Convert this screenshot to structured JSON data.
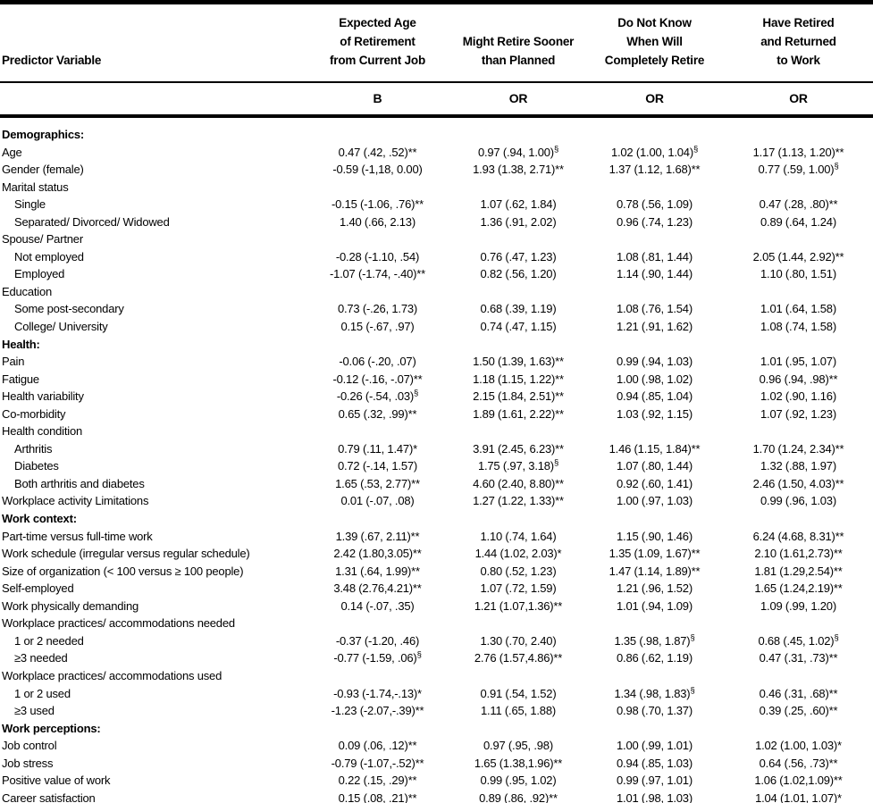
{
  "page": {
    "background": "#ffffff",
    "text_color": "#000000",
    "rule_color": "#000000"
  },
  "table": {
    "col1_header": "Predictor Variable",
    "columns": [
      {
        "title_lines": [
          "Expected Age",
          "of Retirement",
          "from Current Job"
        ],
        "stat": "B"
      },
      {
        "title_lines": [
          "Might Retire Sooner",
          "than Planned"
        ],
        "stat": "OR"
      },
      {
        "title_lines": [
          "Do Not Know",
          "When Will",
          "Completely Retire"
        ],
        "stat": "OR"
      },
      {
        "title_lines": [
          "Have Retired",
          "and Returned",
          "to Work"
        ],
        "stat": "OR"
      }
    ],
    "rows": [
      {
        "label": "Demographics:",
        "style": "section",
        "cells": [
          "",
          "",
          "",
          ""
        ]
      },
      {
        "label": "Age",
        "style": "plain",
        "cells": [
          "0.47 (.42, .52)**",
          "0.97 (.94, 1.00)§",
          "1.02 (1.00, 1.04)§",
          "1.17 (1.13, 1.20)**"
        ]
      },
      {
        "label": "Gender (female)",
        "style": "plain",
        "cells": [
          "-0.59 (-1,18, 0.00)",
          "1.93 (1.38, 2.71)**",
          "1.37 (1.12, 1.68)**",
          "0.77 (.59, 1.00)§"
        ]
      },
      {
        "label": "Marital status",
        "style": "plain",
        "cells": [
          "",
          "",
          "",
          ""
        ]
      },
      {
        "label": "Single",
        "style": "indent",
        "cells": [
          "-0.15 (-1.06, .76)**",
          "1.07 (.62, 1.84)",
          "0.78 (.56, 1.09)",
          "0.47 (.28, .80)**"
        ]
      },
      {
        "label": "Separated/ Divorced/ Widowed",
        "style": "indent",
        "cells": [
          "1.40 (.66, 2.13)",
          "1.36 (.91, 2.02)",
          "0.96 (.74, 1.23)",
          "0.89 (.64, 1.24)"
        ]
      },
      {
        "label": "Spouse/ Partner",
        "style": "plain",
        "cells": [
          "",
          "",
          "",
          ""
        ]
      },
      {
        "label": "Not employed",
        "style": "indent",
        "cells": [
          "-0.28 (-1.10, .54)",
          "0.76 (.47, 1.23)",
          "1.08 (.81, 1.44)",
          "2.05 (1.44, 2.92)**"
        ]
      },
      {
        "label": "Employed",
        "style": "indent",
        "cells": [
          "-1.07 (-1.74, -.40)**",
          "0.82 (.56, 1.20)",
          "1.14 (.90, 1.44)",
          "1.10 (.80, 1.51)"
        ]
      },
      {
        "label": "Education",
        "style": "plain",
        "cells": [
          "",
          "",
          "",
          ""
        ]
      },
      {
        "label": "Some post-secondary",
        "style": "indent",
        "cells": [
          "0.73 (-.26, 1.73)",
          "0.68 (.39, 1.19)",
          "1.08 (.76, 1.54)",
          "1.01 (.64, 1.58)"
        ]
      },
      {
        "label": "College/ University",
        "style": "indent",
        "cells": [
          "0.15 (-.67, .97)",
          "0.74 (.47, 1.15)",
          "1.21 (.91, 1.62)",
          "1.08 (.74, 1.58)"
        ]
      },
      {
        "label": "Health:",
        "style": "section",
        "cells": [
          "",
          "",
          "",
          ""
        ]
      },
      {
        "label": "Pain",
        "style": "plain",
        "cells": [
          "-0.06 (-.20, .07)",
          "1.50 (1.39, 1.63)**",
          "0.99 (.94, 1.03)",
          "1.01 (.95, 1.07)"
        ]
      },
      {
        "label": "Fatigue",
        "style": "plain",
        "cells": [
          "-0.12 (-.16, -.07)**",
          "1.18 (1.15, 1.22)**",
          "1.00 (.98, 1.02)",
          "0.96 (.94, .98)**"
        ]
      },
      {
        "label": "Health variability",
        "style": "plain",
        "cells": [
          "-0.26 (-.54, .03)§",
          "2.15 (1.84, 2.51)**",
          "0.94 (.85, 1.04)",
          "1.02 (.90, 1.16)"
        ]
      },
      {
        "label": "Co-morbidity",
        "style": "plain",
        "cells": [
          "0.65 (.32, .99)**",
          "1.89 (1.61, 2.22)**",
          "1.03 (.92, 1.15)",
          "1.07 (.92, 1.23)"
        ]
      },
      {
        "label": "Health condition",
        "style": "plain",
        "cells": [
          "",
          "",
          "",
          ""
        ]
      },
      {
        "label": "Arthritis",
        "style": "indent",
        "cells": [
          "0.79 (.11, 1.47)*",
          "3.91 (2.45, 6.23)**",
          "1.46 (1.15, 1.84)**",
          "1.70 (1.24, 2.34)**"
        ]
      },
      {
        "label": "Diabetes",
        "style": "indent",
        "cells": [
          "0.72 (-.14, 1.57)",
          "1.75 (.97, 3.18)§",
          "1.07 (.80, 1.44)",
          "1.32 (.88, 1.97)"
        ]
      },
      {
        "label": "Both arthritis and diabetes",
        "style": "indent",
        "cells": [
          "1.65 (.53, 2.77)**",
          "4.60 (2.40, 8.80)**",
          "0.92 (.60, 1.41)",
          "2.46 (1.50, 4.03)**"
        ]
      },
      {
        "label": "Workplace activity Limitations",
        "style": "plain",
        "cells": [
          "0.01 (-.07, .08)",
          "1.27 (1.22, 1.33)**",
          "1.00 (.97, 1.03)",
          "0.99 (.96, 1.03)"
        ]
      },
      {
        "label": "Work context:",
        "style": "section",
        "cells": [
          "",
          "",
          "",
          ""
        ]
      },
      {
        "label": "Part-time versus full-time work",
        "style": "plain",
        "cells": [
          "1.39 (.67, 2.11)**",
          "1.10 (.74, 1.64)",
          "1.15 (.90, 1.46)",
          "6.24 (4.68, 8.31)**"
        ]
      },
      {
        "label": "Work schedule (irregular versus regular schedule)",
        "style": "plain",
        "cells": [
          "2.42 (1.80,3.05)**",
          "1.44 (1.02, 2.03)*",
          "1.35 (1.09, 1.67)**",
          "2.10 (1.61,2.73)**"
        ]
      },
      {
        "label": "Size of organization (< 100 versus ≥ 100 people)",
        "style": "plain",
        "cells": [
          "1.31 (.64, 1.99)**",
          "0.80 (.52, 1.23)",
          "1.47 (1.14, 1.89)**",
          "1.81 (1.29,2.54)**"
        ]
      },
      {
        "label": "Self-employed",
        "style": "plain",
        "cells": [
          "3.48 (2.76,4.21)**",
          "1.07 (.72, 1.59)",
          "1.21 (.96, 1.52)",
          "1.65 (1.24,2.19)**"
        ]
      },
      {
        "label": "Work physically demanding",
        "style": "plain",
        "cells": [
          "0.14 (-.07, .35)",
          "1.21 (1.07,1.36)**",
          "1.01 (.94, 1.09)",
          "1.09 (.99, 1.20)"
        ]
      },
      {
        "label": "Workplace practices/ accommodations needed",
        "style": "plain",
        "cells": [
          "",
          "",
          "",
          ""
        ]
      },
      {
        "label": "1 or 2 needed",
        "style": "indent",
        "cells": [
          "-0.37 (-1.20, .46)",
          "1.30 (.70, 2.40)",
          "1.35 (.98, 1.87)§",
          "0.68 (.45, 1.02)§"
        ]
      },
      {
        "label": "≥3 needed",
        "style": "indent",
        "cells": [
          "-0.77 (-1.59, .06)§",
          "2.76 (1.57,4.86)**",
          "0.86 (.62, 1.19)",
          "0.47 (.31, .73)**"
        ]
      },
      {
        "label": "Workplace practices/ accommodations used",
        "style": "plain",
        "cells": [
          "",
          "",
          "",
          ""
        ]
      },
      {
        "label": "1 or 2 used",
        "style": "indent",
        "cells": [
          "-0.93 (-1.74,-.13)*",
          "0.91 (.54, 1.52)",
          "1.34 (.98, 1.83)§",
          "0.46 (.31, .68)**"
        ]
      },
      {
        "label": "≥3 used",
        "style": "indent",
        "cells": [
          "-1.23 (-2.07,-.39)**",
          "1.11 (.65, 1.88)",
          "0.98 (.70, 1.37)",
          "0.39 (.25, .60)**"
        ]
      },
      {
        "label": "Work perceptions:",
        "style": "section",
        "cells": [
          "",
          "",
          "",
          ""
        ]
      },
      {
        "label": "Job control",
        "style": "plain",
        "cells": [
          "0.09 (.06, .12)**",
          "0.97 (.95, .98)",
          "1.00 (.99, 1.01)",
          "1.02 (1.00, 1.03)*"
        ]
      },
      {
        "label": "Job stress",
        "style": "plain",
        "cells": [
          "-0.79 (-1.07,-.52)**",
          "1.65 (1.38,1.96)**",
          "0.94 (.85, 1.03)",
          "0.64 (.56, .73)**"
        ]
      },
      {
        "label": "Positive value of work",
        "style": "plain",
        "cells": [
          "0.22 (.15, .29)**",
          "0.99 (.95, 1.02)",
          "0.99 (.97, 1.01)",
          "1.06 (1.02,1.09)**"
        ]
      },
      {
        "label": "Career satisfaction",
        "style": "plain",
        "cells": [
          "0.15 (.08, .21)**",
          "0.89 (.86, .92)**",
          "1.01 (.98, 1.03)",
          "1.04 (1.01, 1.07)*"
        ]
      }
    ]
  }
}
